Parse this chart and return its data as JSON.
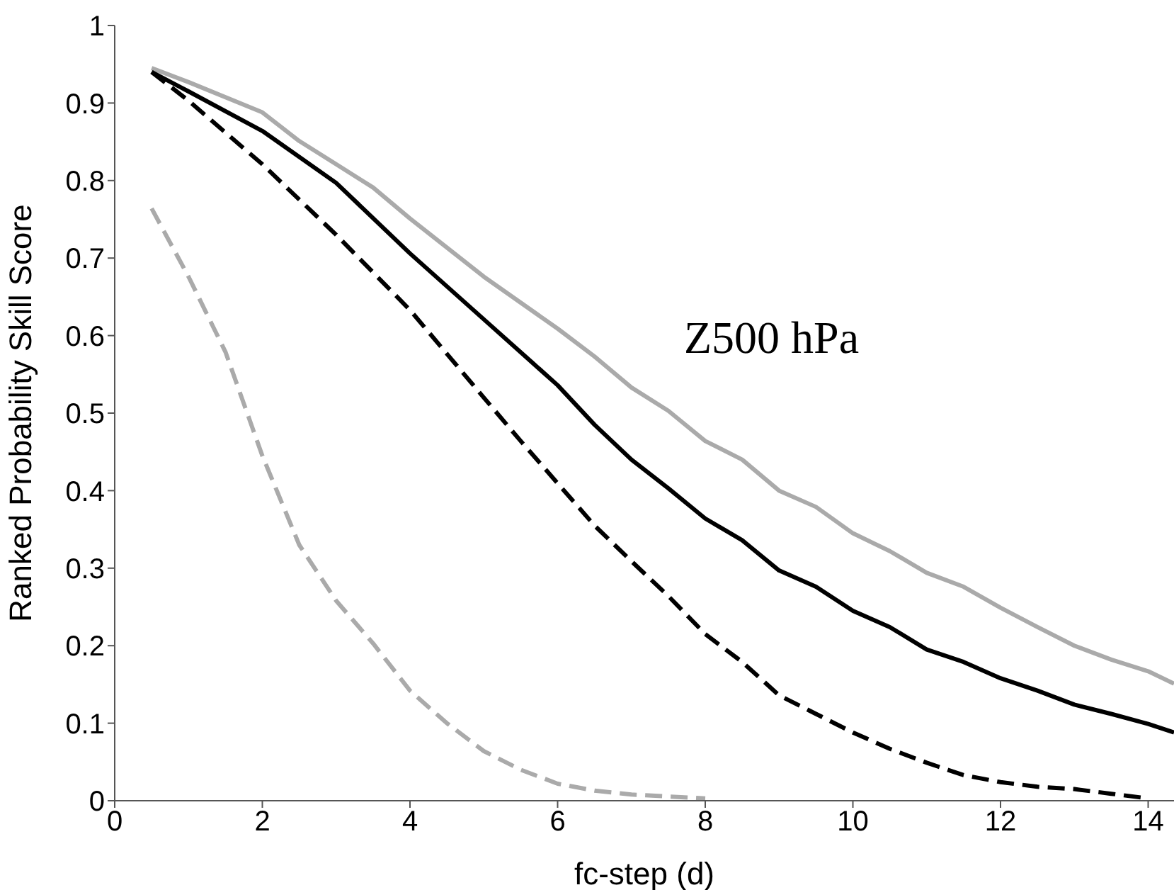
{
  "chart_data": {
    "type": "line",
    "xlabel": "fc-step (d)",
    "ylabel": "Ranked Probability Skill Score",
    "annotations": [
      "Z500 hPa"
    ],
    "xlim": [
      0,
      14.35
    ],
    "xticks": [
      0,
      2,
      4,
      6,
      8,
      10,
      12,
      14
    ],
    "ylim": [
      0,
      1
    ],
    "yticks": [
      0,
      0.1,
      0.2,
      0.3,
      0.4,
      0.5,
      0.6,
      0.7,
      0.8,
      0.9,
      1
    ],
    "marker": "none",
    "series": [
      {
        "color": "#aaaaaa",
        "line_style": "solid",
        "x": [
          0.5,
          1,
          2,
          2.5,
          3,
          3.5,
          4,
          5,
          6,
          6.5,
          7,
          7.5,
          8,
          8.5,
          9,
          9.5,
          10,
          10.5,
          11,
          11.5,
          12,
          12.5,
          13,
          13.5,
          14,
          14.35
        ],
        "values": [
          0.945,
          0.927,
          0.888,
          0.851,
          0.821,
          0.791,
          0.751,
          0.676,
          0.609,
          0.573,
          0.533,
          0.503,
          0.464,
          0.44,
          0.4,
          0.379,
          0.345,
          0.322,
          0.294,
          0.276,
          0.249,
          0.224,
          0.2,
          0.182,
          0.167,
          0.151
        ]
      },
      {
        "color": "#000000",
        "line_style": "solid",
        "x": [
          0.5,
          1,
          2,
          3,
          4,
          5,
          6,
          6.5,
          7,
          7.5,
          8,
          8.5,
          9,
          9.5,
          10,
          10.5,
          11,
          11.5,
          12,
          12.5,
          13,
          13.5,
          14,
          14.35
        ],
        "values": [
          0.94,
          0.915,
          0.864,
          0.797,
          0.706,
          0.621,
          0.536,
          0.485,
          0.44,
          0.403,
          0.364,
          0.336,
          0.297,
          0.276,
          0.245,
          0.224,
          0.195,
          0.179,
          0.158,
          0.142,
          0.124,
          0.112,
          0.099,
          0.088
        ]
      },
      {
        "color": "#000000",
        "line_style": "dashed",
        "x": [
          0.5,
          1,
          2,
          3,
          4,
          5,
          5.5,
          6.5,
          7,
          7.5,
          8,
          8.5,
          9,
          9.5,
          10,
          10.5,
          11,
          11.5,
          12,
          12.5,
          13,
          13.5,
          14
        ],
        "values": [
          0.94,
          0.903,
          0.821,
          0.73,
          0.633,
          0.52,
          0.464,
          0.355,
          0.309,
          0.264,
          0.215,
          0.179,
          0.136,
          0.112,
          0.088,
          0.067,
          0.049,
          0.033,
          0.024,
          0.018,
          0.015,
          0.009,
          0.003
        ]
      },
      {
        "color": "#aaaaaa",
        "line_style": "dashed",
        "x": [
          0.5,
          1,
          1.5,
          2,
          2.5,
          3,
          3.5,
          4,
          4.5,
          5,
          5.5,
          6,
          6.5,
          7,
          8
        ],
        "values": [
          0.764,
          0.676,
          0.579,
          0.445,
          0.33,
          0.258,
          0.203,
          0.142,
          0.1,
          0.064,
          0.04,
          0.022,
          0.013,
          0.008,
          0.003
        ]
      }
    ]
  }
}
